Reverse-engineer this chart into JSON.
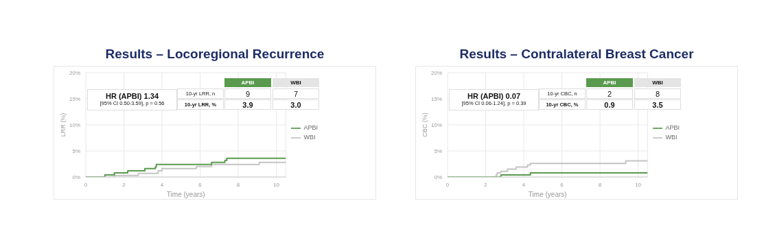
{
  "chart_data": [
    {
      "type": "step",
      "title": "Results – Locoregional Recurrence",
      "xlabel": "Time (years)",
      "ylabel": "LRR (%)",
      "xlim": [
        0,
        10.5
      ],
      "xticks": [
        0,
        2,
        4,
        6,
        8,
        10
      ],
      "ylim": [
        0,
        20
      ],
      "yticks": [
        {
          "value": 0,
          "label": "0%"
        },
        {
          "value": 5,
          "label": "5%"
        },
        {
          "value": 10,
          "label": "10%"
        },
        {
          "value": 15,
          "label": "15%"
        },
        {
          "value": 20,
          "label": "20%"
        }
      ],
      "grid": true,
      "legend": "right",
      "marker": "none",
      "series": [
        {
          "name": "WBI",
          "color": "#c4c4c4",
          "x": [
            0,
            1.5,
            2.75,
            3.8,
            4.0,
            5.8,
            6.6,
            9.1,
            10.5
          ],
          "values": [
            0,
            0.3,
            0.7,
            1.2,
            1.6,
            2.0,
            2.4,
            2.8,
            2.8
          ]
        },
        {
          "name": "APBI",
          "color": "#5a9a4e",
          "x": [
            0,
            1.0,
            1.5,
            2.2,
            3.1,
            3.65,
            3.7,
            6.6,
            7.3,
            7.4,
            10.5
          ],
          "values": [
            0,
            0.4,
            0.8,
            1.2,
            1.6,
            1.9,
            2.4,
            2.8,
            3.2,
            3.6,
            3.6
          ]
        }
      ],
      "annotations": [
        "HR (APBI) 1.34",
        "[95% CI 0.50-3.59], p = 0.56",
        "APBI",
        "WBI",
        "10-yr LRR, n",
        "9",
        "7",
        "10-yr LRR, %",
        "3.9",
        "3.0"
      ]
    },
    {
      "type": "step",
      "title": "Results – Contralateral Breast Cancer",
      "xlabel": "Time (years)",
      "ylabel": "CBC (%)",
      "xlim": [
        0,
        10.5
      ],
      "xticks": [
        0,
        2,
        4,
        6,
        8,
        10
      ],
      "ylim": [
        0,
        20
      ],
      "yticks": [
        {
          "value": 0,
          "label": "0%"
        },
        {
          "value": 5,
          "label": "5%"
        },
        {
          "value": 10,
          "label": "10%"
        },
        {
          "value": 15,
          "label": "15%"
        },
        {
          "value": 20,
          "label": "20%"
        }
      ],
      "grid": true,
      "legend": "right",
      "marker": "none",
      "series": [
        {
          "name": "WBI",
          "color": "#c4c4c4",
          "x": [
            0,
            2.55,
            2.6,
            2.8,
            3.15,
            3.6,
            4.2,
            4.35,
            9.35,
            10.5
          ],
          "values": [
            0,
            0.4,
            0.8,
            1.1,
            1.5,
            1.9,
            2.3,
            2.6,
            3.1,
            3.1
          ]
        },
        {
          "name": "APBI",
          "color": "#5a9a4e",
          "x": [
            0,
            2.8,
            4.35,
            10.5
          ],
          "values": [
            0,
            0.4,
            0.8,
            0.8
          ]
        }
      ],
      "annotations": [
        "HR (APBI) 0.07",
        "[95% CI 0.06-1.24], p = 0.39",
        "APBI",
        "WBI",
        "10-yr CBC, n",
        "2",
        "8",
        "10-yr CBC, %",
        "0.9",
        "3.5"
      ]
    }
  ]
}
